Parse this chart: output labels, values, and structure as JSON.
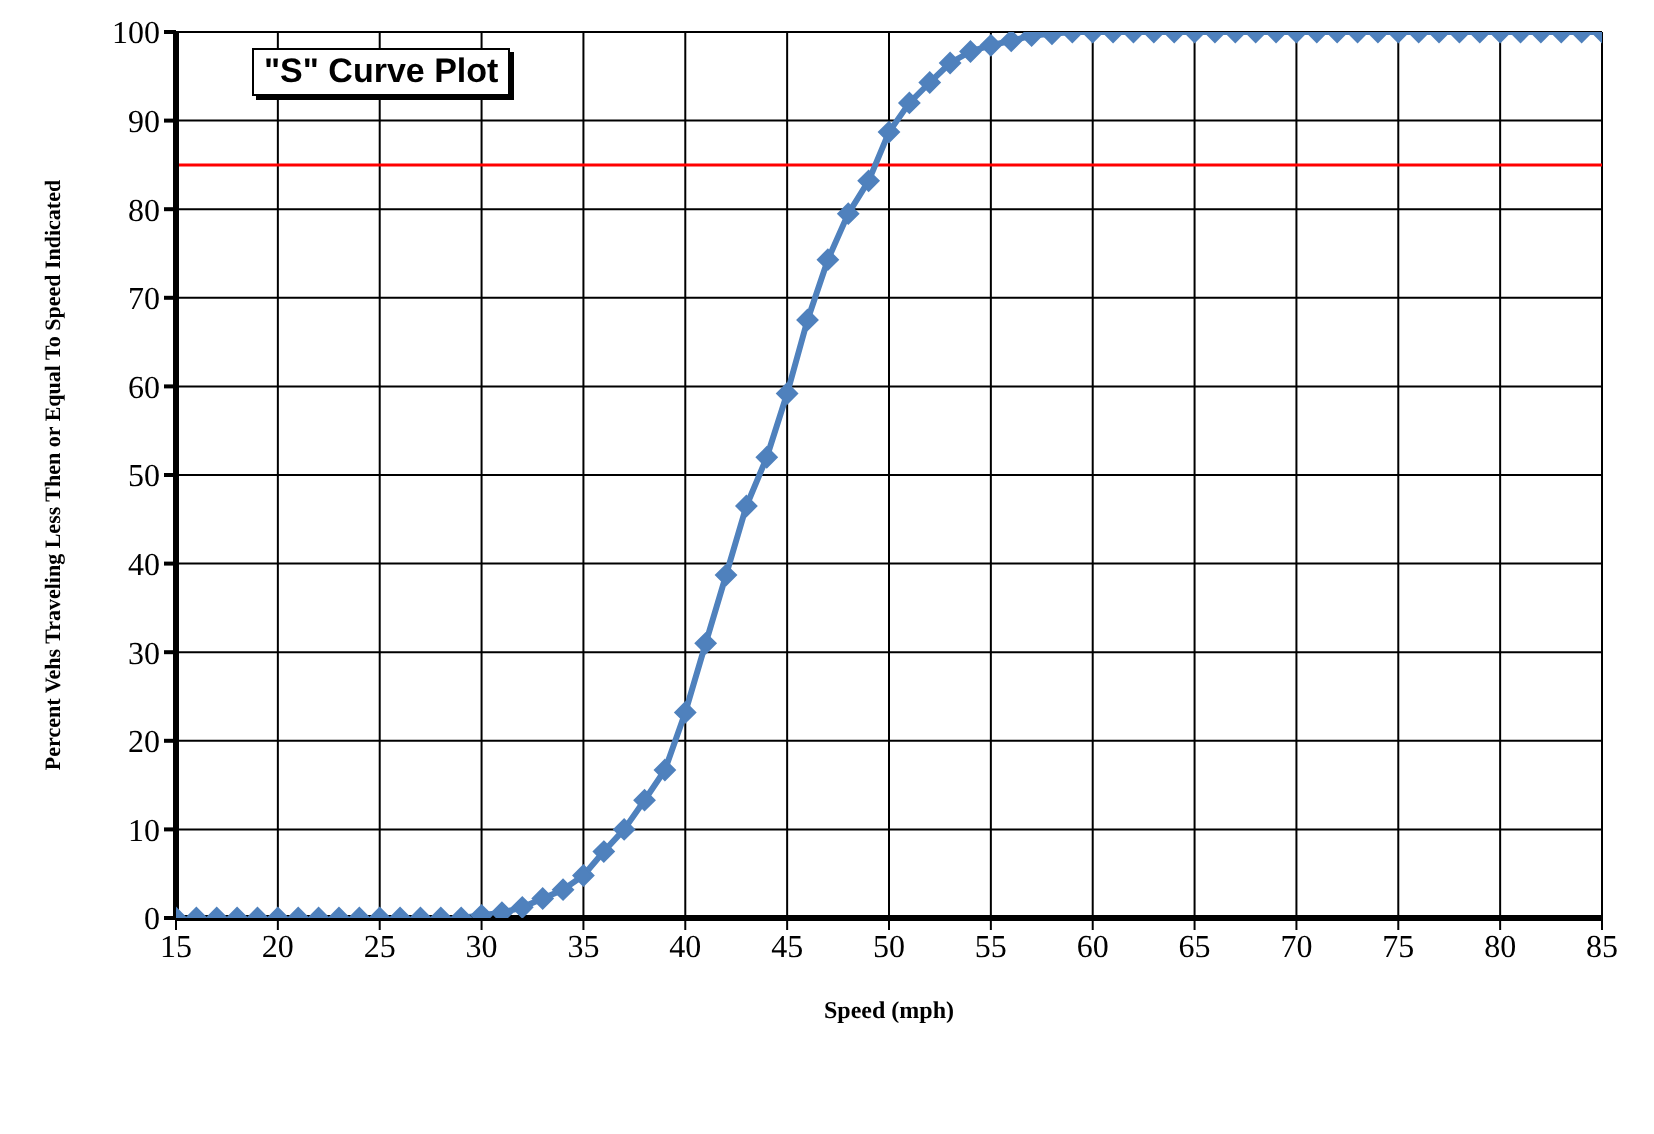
{
  "chart_data": {
    "type": "line",
    "title": "\"S\" Curve Plot",
    "xlabel": "Speed (mph)",
    "ylabel": "Percent Vehs Traveling Less Then or Equal To Speed Indicated",
    "x": [
      15,
      16,
      17,
      18,
      19,
      20,
      21,
      22,
      23,
      24,
      25,
      26,
      27,
      28,
      29,
      30,
      31,
      32,
      33,
      34,
      35,
      36,
      37,
      38,
      39,
      40,
      41,
      42,
      43,
      44,
      45,
      46,
      47,
      48,
      49,
      50,
      51,
      52,
      53,
      54,
      55,
      56,
      57,
      58,
      59,
      60,
      61,
      62,
      63,
      64,
      65,
      66,
      67,
      68,
      69,
      70,
      71,
      72,
      73,
      74,
      75,
      76,
      77,
      78,
      79,
      80,
      81,
      82,
      83,
      84,
      85
    ],
    "series": [
      {
        "color": "#4f81bd",
        "values": [
          0,
          0,
          0,
          0,
          0,
          0,
          0,
          0,
          0,
          0,
          0,
          0,
          0,
          0,
          0,
          0.3,
          0.6,
          1.2,
          2.2,
          3.2,
          4.8,
          7.5,
          10,
          13.3,
          16.7,
          23.2,
          31,
          38.7,
          46.5,
          52,
          59.2,
          67.5,
          74.3,
          79.5,
          83.2,
          88.7,
          92,
          94.3,
          96.5,
          97.8,
          98.5,
          99,
          99.6,
          99.8,
          100,
          100,
          100,
          100,
          100,
          100,
          100,
          100,
          100,
          100,
          100,
          100,
          100,
          100,
          100,
          100,
          100,
          100,
          100,
          100,
          100,
          100,
          100,
          100,
          100,
          100,
          100
        ]
      }
    ],
    "xlim": [
      15,
      85
    ],
    "xticks": [
      15,
      20,
      25,
      30,
      35,
      40,
      45,
      50,
      55,
      60,
      65,
      70,
      75,
      80,
      85
    ],
    "ylim": [
      0,
      100
    ],
    "yticks": [
      0,
      10,
      20,
      30,
      40,
      50,
      60,
      70,
      80,
      90,
      100
    ],
    "ref_lines": [
      {
        "axis": "y",
        "value": 85,
        "color": "#ff0000"
      }
    ],
    "grid": true,
    "marker": "diamond",
    "line_style": "solid"
  }
}
